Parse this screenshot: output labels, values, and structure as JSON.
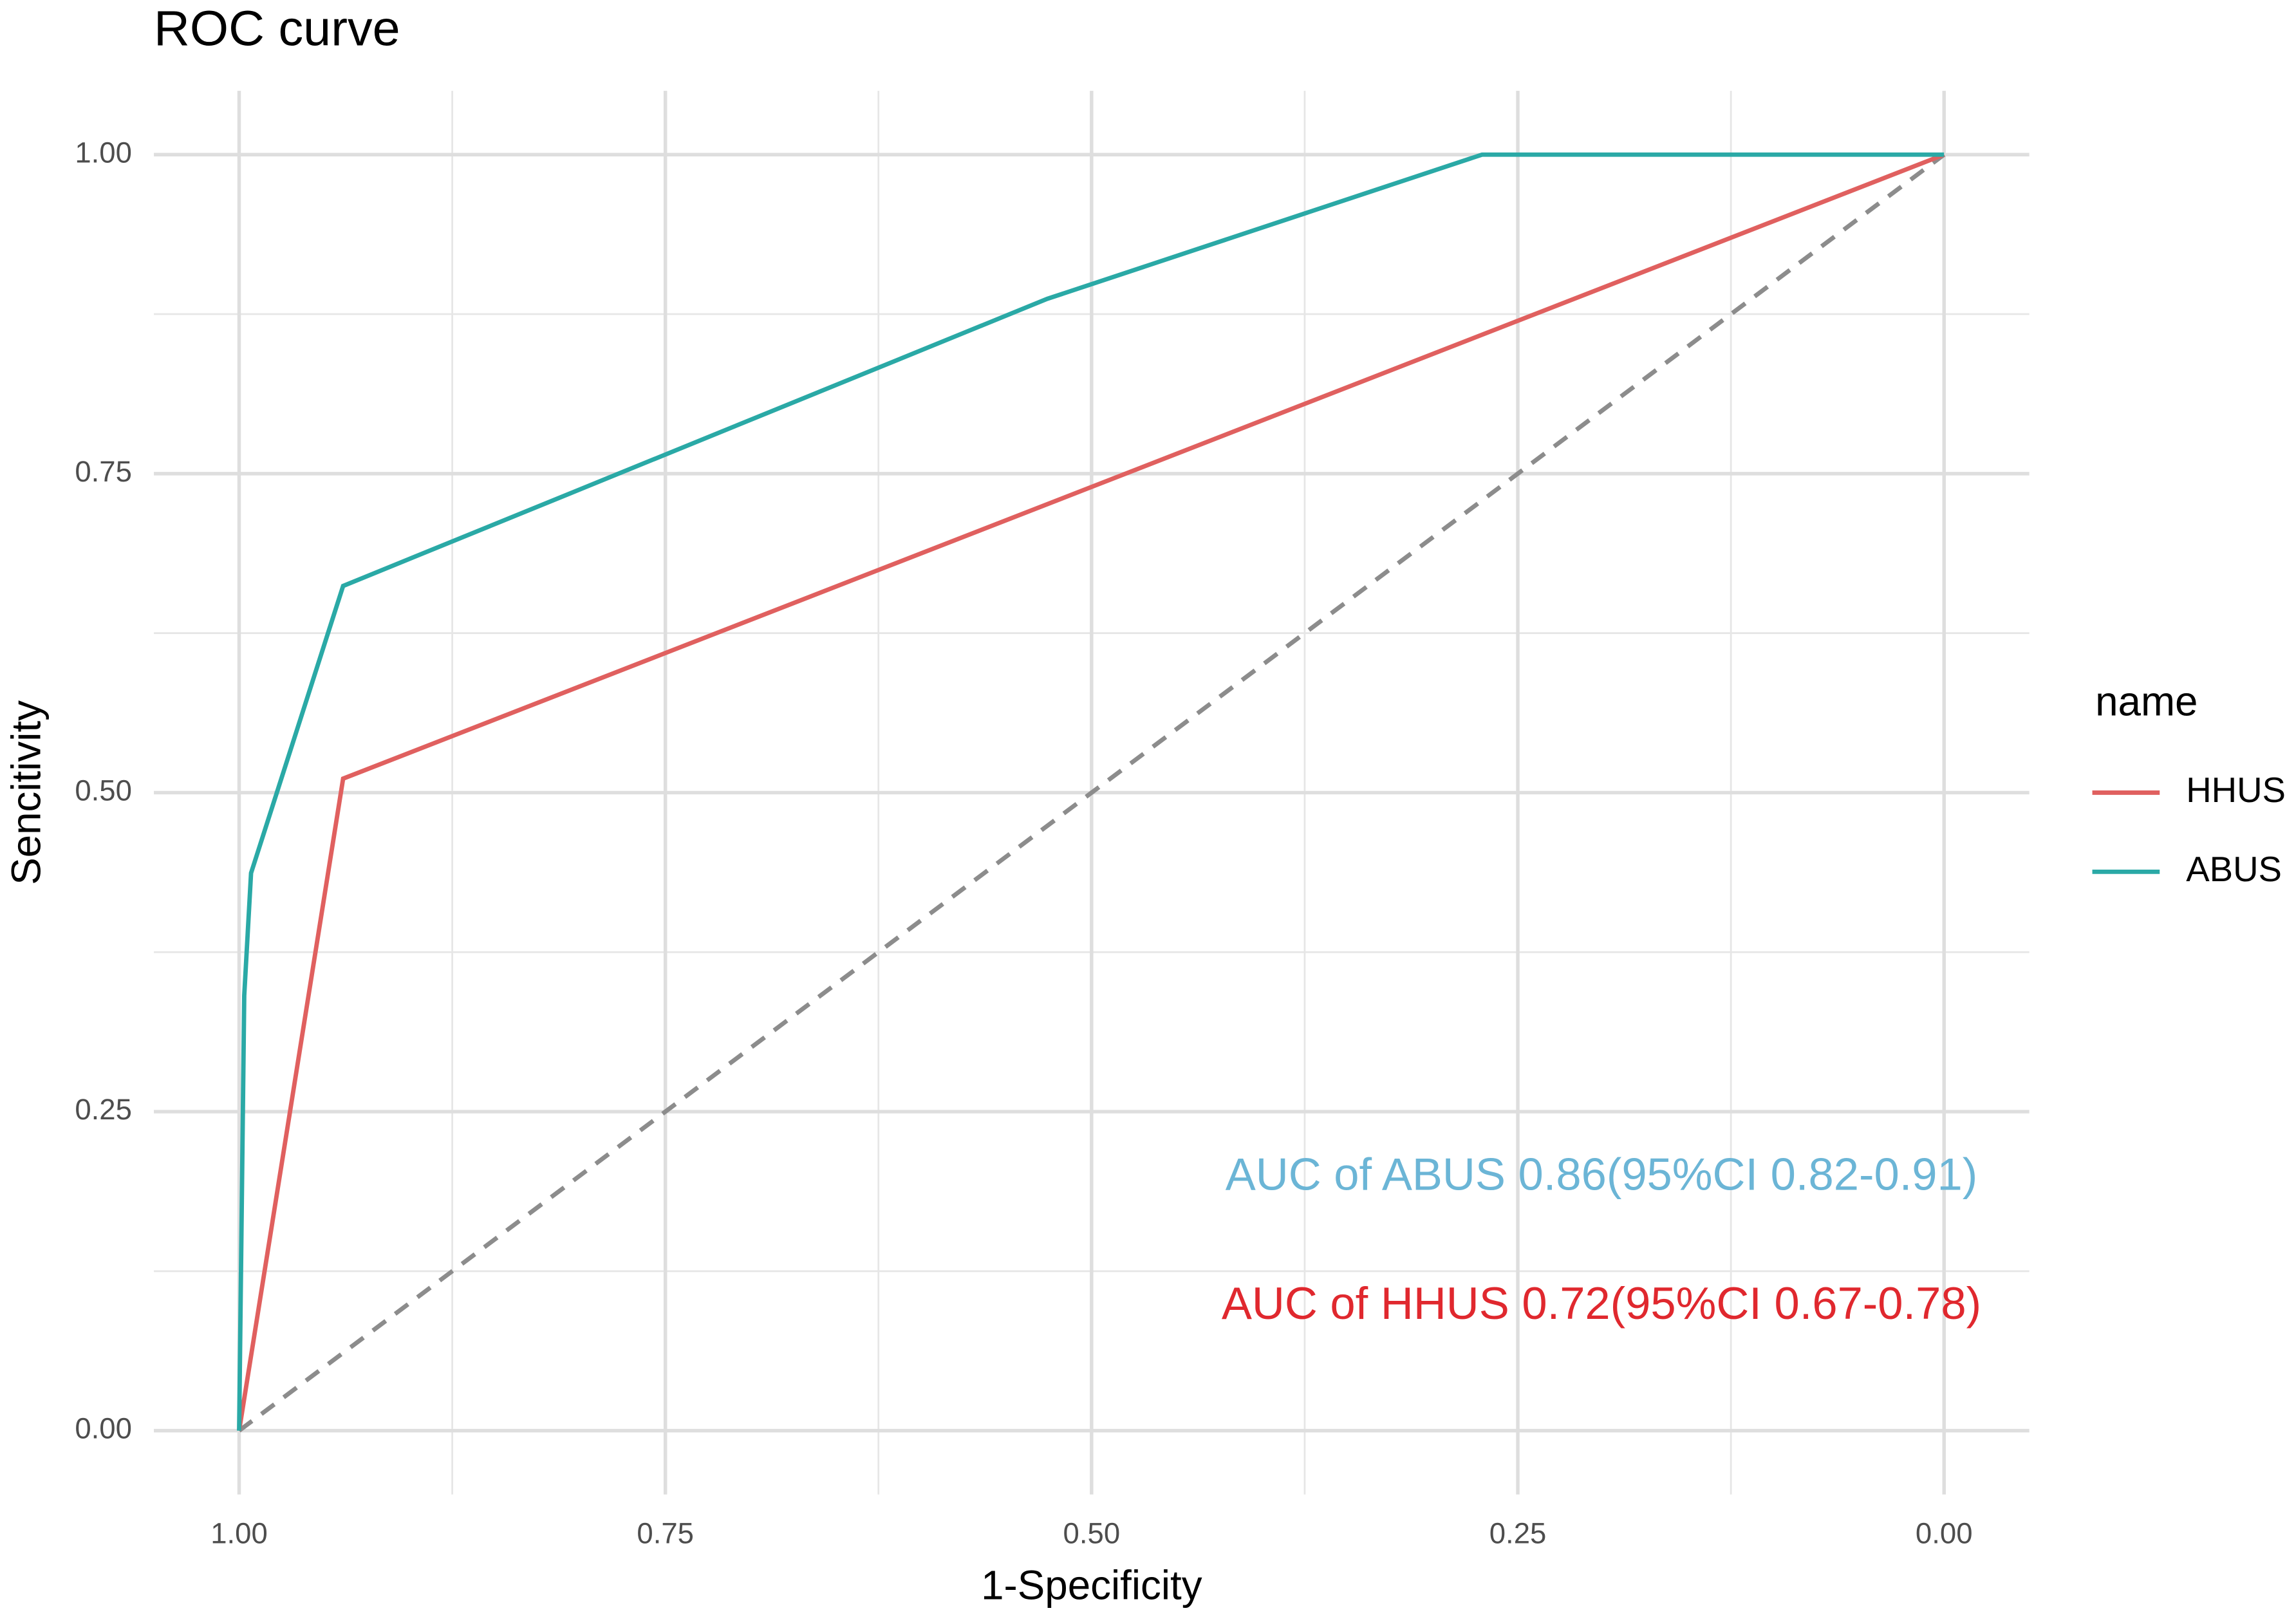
{
  "chart_data": {
    "type": "line",
    "title": "ROC curve",
    "xlabel": "1-Specificity",
    "ylabel": "Sencitivity",
    "legend_title": "name",
    "legend_position": "right",
    "grid": true,
    "xlim": [
      1.05,
      -0.05
    ],
    "ylim": [
      -0.05,
      1.05
    ],
    "xticks": [
      {
        "value": 1,
        "label": "1.00"
      },
      {
        "value": 0.75,
        "label": "0.75"
      },
      {
        "value": 0.5,
        "label": "0.50"
      },
      {
        "value": 0.25,
        "label": "0.25"
      },
      {
        "value": 0,
        "label": "0.00"
      }
    ],
    "yticks": [
      {
        "value": 0,
        "label": "0.00"
      },
      {
        "value": 0.25,
        "label": "0.25"
      },
      {
        "value": 0.5,
        "label": "0.50"
      },
      {
        "value": 0.75,
        "label": "0.75"
      },
      {
        "value": 1,
        "label": "1.00"
      }
    ],
    "series": [
      {
        "name": "HHUS",
        "color": "#e0605f",
        "x": [
          1,
          0.939,
          0
        ],
        "values": [
          0,
          0.511,
          1
        ]
      },
      {
        "name": "ABUS",
        "color": "#2aa9a6",
        "x": [
          1,
          0.997,
          0.993,
          0.939,
          0.526,
          0.271,
          0
        ],
        "values": [
          0,
          0.341,
          0.437,
          0.662,
          0.887,
          1,
          1
        ]
      }
    ],
    "annotations": [
      {
        "text": "AUC of ABUS 0.86(95%CI 0.82-0.91)",
        "color": "#6bb5d6"
      },
      {
        "text": "AUC of HHUS 0.72(95%CI 0.67-0.78)",
        "color": "#e0282e"
      }
    ]
  }
}
